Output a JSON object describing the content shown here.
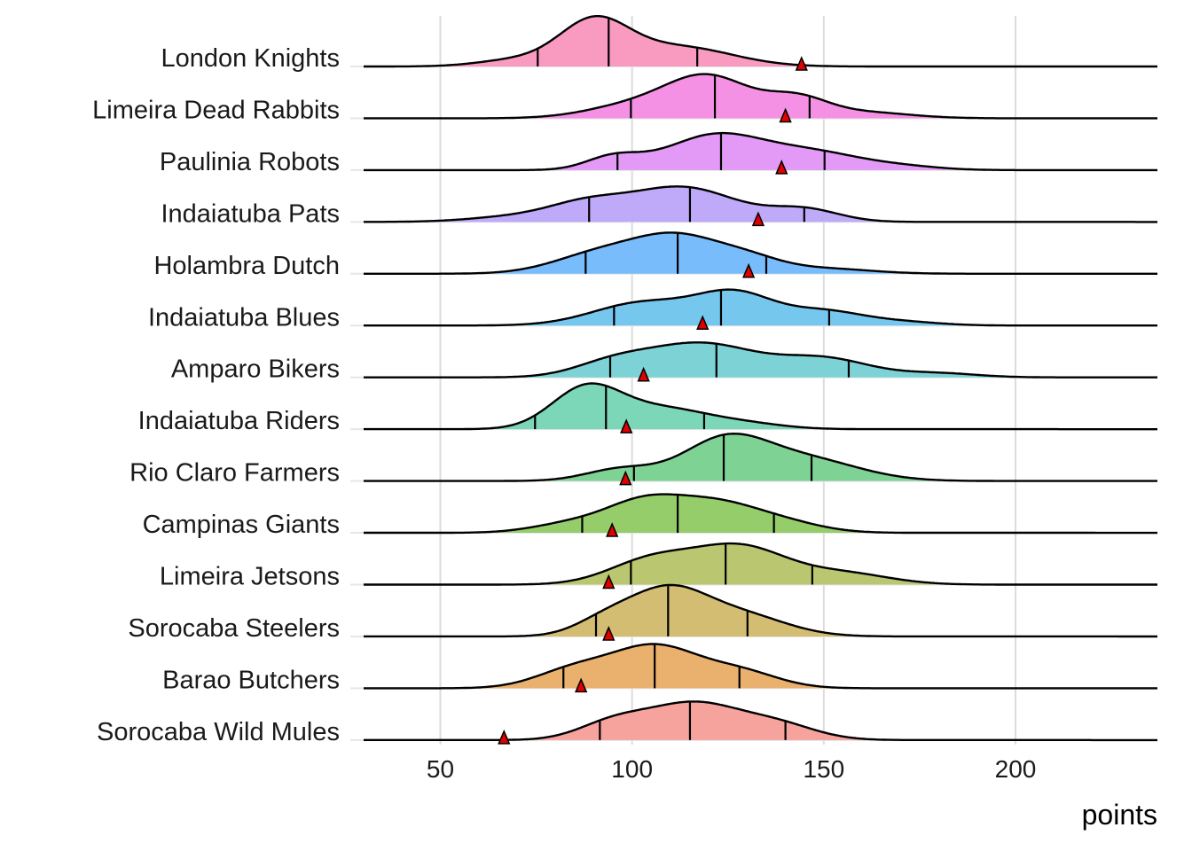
{
  "chart_data": {
    "type": "ridgeline",
    "title": "",
    "xlabel": "points",
    "ylabel": "",
    "xlim": [
      30,
      237
    ],
    "xticks": [
      50,
      100,
      150,
      200
    ],
    "grid": true,
    "legend": "none",
    "marker_color": "#E00000",
    "series": [
      {
        "name": "London Knights",
        "color": "#F995BE",
        "peak": 0.98,
        "quantiles": [
          75.4,
          93.9,
          117
        ],
        "marker": 144.2,
        "components": [
          [
            90,
            9,
            1
          ],
          [
            112,
            14,
            0.45
          ],
          [
            70,
            10,
            0.15
          ]
        ]
      },
      {
        "name": "Limeira Dead Rabbits",
        "color": "#F48BE3",
        "peak": 0.86,
        "quantiles": [
          99.7,
          121.6,
          146.3
        ],
        "marker": 140,
        "components": [
          [
            120,
            11,
            1
          ],
          [
            143,
            8,
            0.45
          ],
          [
            100,
            12,
            0.3
          ],
          [
            160,
            12,
            0.15
          ]
        ]
      },
      {
        "name": "Paulinia Robots",
        "color": "#E095F5",
        "peak": 0.72,
        "quantiles": [
          96.2,
          123.2,
          150.2
        ],
        "marker": 139,
        "components": [
          [
            122,
            13,
            1
          ],
          [
            95,
            7,
            0.35
          ],
          [
            148,
            12,
            0.45
          ],
          [
            170,
            10,
            0.1
          ]
        ]
      },
      {
        "name": "Indaiatuba Pats",
        "color": "#BCA4F9",
        "peak": 0.69,
        "quantiles": [
          88.8,
          115.1,
          144.9
        ],
        "marker": 132.9,
        "components": [
          [
            113,
            14,
            1
          ],
          [
            88,
            10,
            0.45
          ],
          [
            145,
            9,
            0.35
          ],
          [
            70,
            12,
            0.15
          ]
        ]
      },
      {
        "name": "Holambra Dutch",
        "color": "#72B8FC",
        "peak": 0.8,
        "quantiles": [
          87.9,
          111.9,
          135
        ],
        "marker": 130.4,
        "components": [
          [
            112,
            11,
            1
          ],
          [
            92,
            12,
            0.6
          ],
          [
            130,
            9,
            0.4
          ],
          [
            150,
            12,
            0.15
          ]
        ]
      },
      {
        "name": "Indaiatuba Blues",
        "color": "#6EC4ED",
        "peak": 0.7,
        "quantiles": [
          95.3,
          123.2,
          151.4
        ],
        "marker": 118.4,
        "components": [
          [
            127,
            10,
            1
          ],
          [
            103,
            13,
            0.75
          ],
          [
            150,
            10,
            0.45
          ],
          [
            170,
            10,
            0.12
          ]
        ]
      },
      {
        "name": "Amparo Bikers",
        "color": "#75D0D3",
        "peak": 0.68,
        "quantiles": [
          94.3,
          122,
          156.5
        ],
        "marker": 103,
        "components": [
          [
            118,
            14,
            1
          ],
          [
            95,
            10,
            0.4
          ],
          [
            150,
            12,
            0.55
          ],
          [
            180,
            10,
            0.12
          ]
        ]
      },
      {
        "name": "Indaiatuba Riders",
        "color": "#75D4B4",
        "peak": 0.89,
        "quantiles": [
          74.7,
          93.2,
          118.8
        ],
        "marker": 98.5,
        "components": [
          [
            88,
            9,
            1
          ],
          [
            108,
            12,
            0.5
          ],
          [
            130,
            10,
            0.12
          ]
        ]
      },
      {
        "name": "Rio Claro Farmers",
        "color": "#77D08E",
        "peak": 0.92,
        "quantiles": [
          100.5,
          123.9,
          146.8
        ],
        "marker": 98.3,
        "components": [
          [
            124,
            11,
            1
          ],
          [
            97,
            9,
            0.3
          ],
          [
            145,
            14,
            0.55
          ]
        ]
      },
      {
        "name": "Campinas Giants",
        "color": "#8ECA62",
        "peak": 0.75,
        "quantiles": [
          87,
          111.9,
          137
        ],
        "marker": 94.8,
        "components": [
          [
            103,
            10,
            1
          ],
          [
            122,
            11,
            0.95
          ],
          [
            84,
            10,
            0.3
          ],
          [
            140,
            10,
            0.3
          ]
        ]
      },
      {
        "name": "Limeira Jetsons",
        "color": "#B6C468",
        "peak": 0.8,
        "quantiles": [
          99.7,
          124.4,
          147
        ],
        "marker": 93.9,
        "components": [
          [
            128,
            12,
            1
          ],
          [
            105,
            11,
            0.65
          ],
          [
            155,
            12,
            0.3
          ]
        ]
      },
      {
        "name": "Sorocaba Steelers",
        "color": "#D1B96A",
        "peak": 1.0,
        "quantiles": [
          90.6,
          109.4,
          130.1
        ],
        "marker": 93.9,
        "components": [
          [
            109,
            10,
            1
          ],
          [
            93,
            8,
            0.35
          ],
          [
            128,
            12,
            0.5
          ]
        ]
      },
      {
        "name": "Barao Butchers",
        "color": "#E8AC66",
        "peak": 0.86,
        "quantiles": [
          82.1,
          105.9,
          128
        ],
        "marker": 86.7,
        "components": [
          [
            106,
            11,
            1
          ],
          [
            85,
            10,
            0.45
          ],
          [
            128,
            10,
            0.4
          ]
        ]
      },
      {
        "name": "Sorocaba Wild Mules",
        "color": "#F69D98",
        "peak": 0.75,
        "quantiles": [
          91.6,
          115.1,
          140
        ],
        "marker": 66.6,
        "components": [
          [
            116,
            12,
            1
          ],
          [
            95,
            9,
            0.45
          ],
          [
            138,
            10,
            0.4
          ]
        ]
      }
    ]
  }
}
